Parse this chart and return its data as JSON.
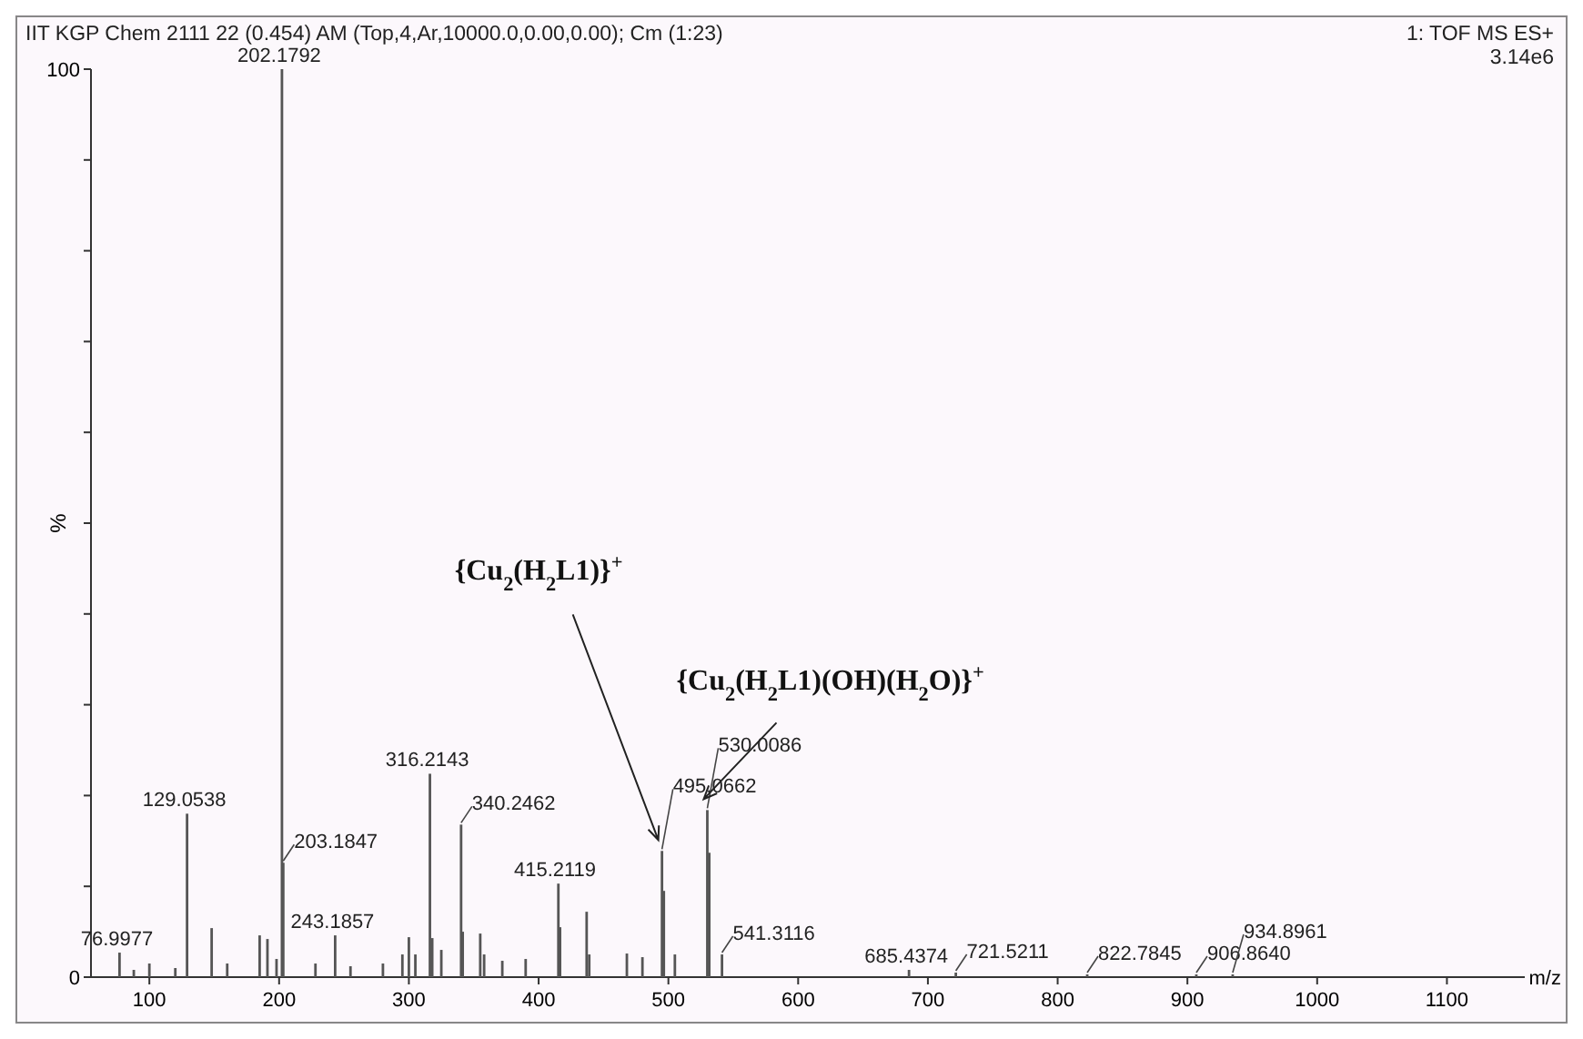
{
  "chart_data": {
    "type": "bar",
    "title": "IIT KGP Chem 2111 22 (0.454) AM (Top,4,Ar,10000.0,0.00,0.00); Cm (1:23)",
    "xlabel": "m/z",
    "ylabel": "%",
    "x": [
      76.9977,
      88,
      100,
      120,
      129.0538,
      148,
      160,
      185,
      191,
      198,
      202.1792,
      203.1847,
      228,
      243.1857,
      255,
      280,
      295,
      300,
      305,
      316.2143,
      318,
      325,
      340.2462,
      341.5,
      355,
      358,
      372,
      390,
      415.2119,
      416.5,
      437,
      439,
      468,
      480,
      495.0662,
      496.5,
      505,
      530.0086,
      531.5,
      541.3116,
      685.4374,
      721.5211,
      822.7845,
      906.864,
      934.8961
    ],
    "values": [
      2.7,
      0.8,
      1.5,
      1,
      18,
      5.4,
      1.5,
      4.6,
      4.2,
      2,
      100,
      12.6,
      1.5,
      4.6,
      1.2,
      1.5,
      2.5,
      4.4,
      2.5,
      22.4,
      4.3,
      3,
      16.8,
      5,
      4.8,
      2.5,
      1.8,
      2,
      10.3,
      5.5,
      7.2,
      2.5,
      2.6,
      2.2,
      13.9,
      9.5,
      2.5,
      18.4,
      13.7,
      2.5,
      0.8,
      0.5,
      0.3,
      0.3,
      0.3
    ],
    "color": "#555555",
    "xlim": [
      55,
      1160
    ],
    "xticks": [
      100,
      200,
      300,
      400,
      500,
      600,
      700,
      800,
      900,
      1000,
      1100
    ],
    "ylim": [
      0,
      100
    ],
    "yticks": [
      0,
      {
        "value": 10,
        "label": null
      },
      {
        "value": 20,
        "label": null
      },
      {
        "value": 30,
        "label": null
      },
      {
        "value": 40,
        "label": null
      },
      {
        "value": 50,
        "label": null
      },
      {
        "value": 60,
        "label": null
      },
      {
        "value": 70,
        "label": null
      },
      {
        "value": 80,
        "label": null
      },
      {
        "value": 90,
        "label": null
      },
      100
    ],
    "annotations": [
      "1: TOF MS ES+",
      "3.14e6",
      {
        "text": "{Cu$_{2}$(H$_{2}$L1)}$^{+}$",
        "x": 495.0662,
        "y": 13.9
      },
      {
        "text": "{Cu$_{2}$(H$_{2}$L1)(OH)(H$_{2}$O)}$^{+}$",
        "x": 530.0086,
        "y": 18.4
      },
      {
        "text": "76.9977",
        "x": 76.9977,
        "y": 2.7
      },
      {
        "text": "129.0538",
        "x": 129.0538,
        "y": 18
      },
      {
        "text": "202.1792",
        "x": 202.1792,
        "y": 100
      },
      {
        "text": "203.1847",
        "x": 203.1847,
        "y": 12.6
      },
      {
        "text": "243.1857",
        "x": 243.1857,
        "y": 4.6
      },
      {
        "text": "316.2143",
        "x": 316.2143,
        "y": 22.4
      },
      {
        "text": "340.2462",
        "x": 340.2462,
        "y": 16.8
      },
      {
        "text": "415.2119",
        "x": 415.2119,
        "y": 10.3
      },
      {
        "text": "495.0662",
        "x": 495.0662,
        "y": 13.9
      },
      {
        "text": "530.0086",
        "x": 530.0086,
        "y": 18.4
      },
      {
        "text": "541.3116",
        "x": 541.3116,
        "y": 2.5
      },
      {
        "text": "685.4374",
        "x": 685.4374,
        "y": 0.8
      },
      {
        "text": "721.5211",
        "x": 721.5211,
        "y": 0.5
      },
      {
        "text": "822.7845",
        "x": 822.7845,
        "y": 0.3
      },
      {
        "text": "906.8640",
        "x": 906.864,
        "y": 0.3
      },
      {
        "text": "934.8961",
        "x": 934.8961,
        "y": 0.3
      }
    ]
  }
}
